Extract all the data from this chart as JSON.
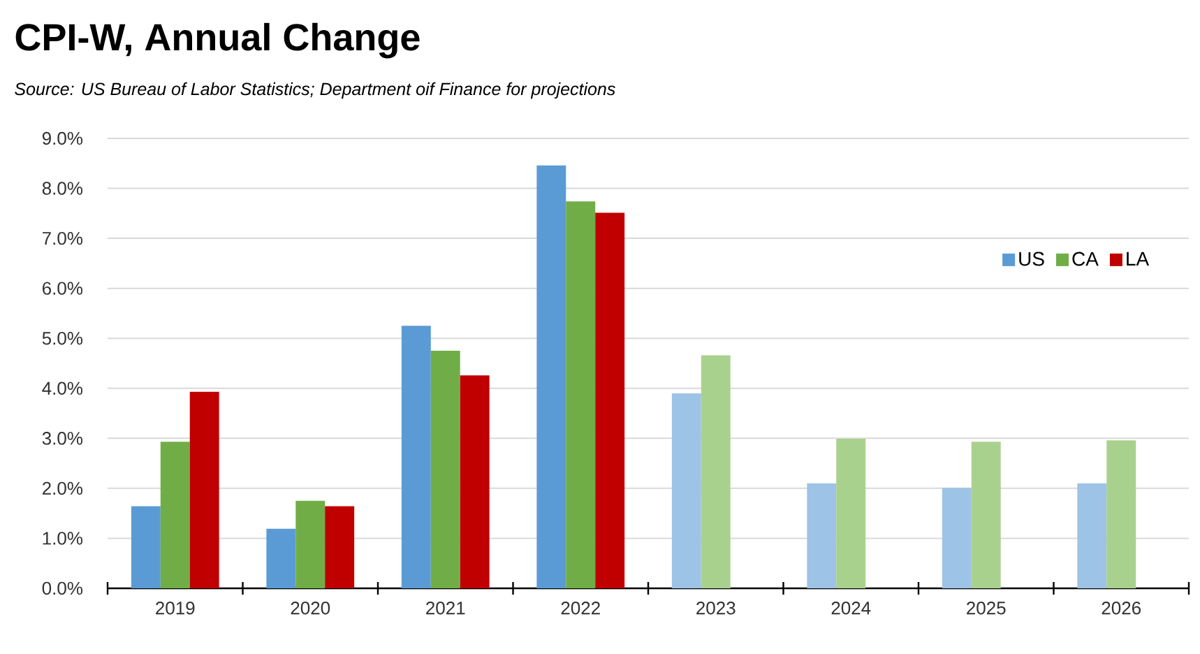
{
  "chart_data": {
    "type": "bar",
    "title": "CPI-W, Annual Change",
    "subtitle": "Source:  US Bureau of Labor Statistics; Department oif Finance for projections",
    "categories": [
      "2019",
      "2020",
      "2021",
      "2022",
      "2023",
      "2024",
      "2025",
      "2026"
    ],
    "series": [
      {
        "name": "US",
        "color": "#5b9bd5",
        "colors": [
          "#5b9bd5",
          "#5b9bd5",
          "#5b9bd5",
          "#5b9bd5",
          "#9dc3e6",
          "#9dc3e6",
          "#9dc3e6",
          "#9dc3e6"
        ],
        "values": [
          1.64,
          1.19,
          5.25,
          8.46,
          3.9,
          2.1,
          2.01,
          2.1
        ]
      },
      {
        "name": "CA",
        "color": "#70ad47",
        "colors": [
          "#70ad47",
          "#70ad47",
          "#70ad47",
          "#70ad47",
          "#a9d18e",
          "#a9d18e",
          "#a9d18e",
          "#a9d18e"
        ],
        "values": [
          2.93,
          1.75,
          4.75,
          7.74,
          4.66,
          2.99,
          2.93,
          2.96
        ]
      },
      {
        "name": "LA",
        "color": "#c00000",
        "colors": [
          "#c00000",
          "#c00000",
          "#c00000",
          "#c00000",
          null,
          null,
          null,
          null
        ],
        "values": [
          3.93,
          1.64,
          4.26,
          7.51,
          null,
          null,
          null,
          null
        ]
      }
    ],
    "ylim": [
      0,
      9
    ],
    "yticks": [
      {
        "value": 0,
        "label": "0.0%"
      },
      {
        "value": 1,
        "label": "1.0%"
      },
      {
        "value": 2,
        "label": "2.0%"
      },
      {
        "value": 3,
        "label": "3.0%"
      },
      {
        "value": 4,
        "label": "4.0%"
      },
      {
        "value": 5,
        "label": "5.0%"
      },
      {
        "value": 6,
        "label": "6.0%"
      },
      {
        "value": 7,
        "label": "7.0%"
      },
      {
        "value": 8,
        "label": "8.0%"
      },
      {
        "value": 9,
        "label": "9.0%"
      }
    ],
    "grid": "y",
    "legend": "top right"
  }
}
